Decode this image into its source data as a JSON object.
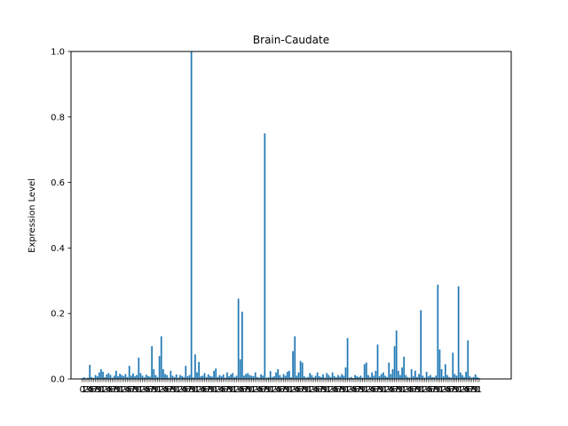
{
  "chart_data": {
    "type": "bar",
    "title": "Brain-Caudate",
    "xlabel": "",
    "ylabel": "Expression Level",
    "ylim": [
      0,
      1.0
    ],
    "yticks": [
      "0.0",
      "0.2",
      "0.4",
      "0.6",
      "0.8",
      "1.0"
    ],
    "xtick_labels_visible": [
      "0",
      "9"
    ],
    "xlim": [
      -6,
      228
    ],
    "bar_color": "#1f77b4",
    "grid": false,
    "legend": "none",
    "values": [
      0.003,
      0.005,
      0.002,
      0.004,
      0.043,
      0.006,
      0.003,
      0.012,
      0.008,
      0.02,
      0.03,
      0.022,
      0.005,
      0.014,
      0.018,
      0.012,
      0.004,
      0.01,
      0.025,
      0.008,
      0.016,
      0.012,
      0.009,
      0.015,
      0.006,
      0.04,
      0.01,
      0.017,
      0.008,
      0.012,
      0.065,
      0.018,
      0.01,
      0.005,
      0.013,
      0.009,
      0.007,
      0.1,
      0.03,
      0.012,
      0.006,
      0.07,
      0.13,
      0.03,
      0.015,
      0.012,
      0.004,
      0.025,
      0.01,
      0.006,
      0.014,
      0.004,
      0.012,
      0.009,
      0.006,
      0.04,
      0.008,
      0.012,
      1.0,
      0.005,
      0.075,
      0.02,
      0.052,
      0.008,
      0.01,
      0.018,
      0.006,
      0.014,
      0.009,
      0.007,
      0.025,
      0.032,
      0.006,
      0.012,
      0.008,
      0.014,
      0.004,
      0.02,
      0.008,
      0.014,
      0.018,
      0.006,
      0.01,
      0.245,
      0.06,
      0.205,
      0.01,
      0.015,
      0.018,
      0.012,
      0.01,
      0.008,
      0.02,
      0.006,
      0.004,
      0.014,
      0.01,
      0.75,
      0.004,
      0.005,
      0.024,
      0.006,
      0.008,
      0.02,
      0.03,
      0.012,
      0.005,
      0.015,
      0.01,
      0.022,
      0.025,
      0.005,
      0.085,
      0.13,
      0.01,
      0.02,
      0.055,
      0.05,
      0.008,
      0.004,
      0.006,
      0.018,
      0.012,
      0.005,
      0.01,
      0.02,
      0.008,
      0.006,
      0.014,
      0.004,
      0.018,
      0.012,
      0.006,
      0.02,
      0.009,
      0.005,
      0.012,
      0.007,
      0.015,
      0.01,
      0.035,
      0.125,
      0.004,
      0.006,
      0.003,
      0.012,
      0.008,
      0.006,
      0.01,
      0.004,
      0.045,
      0.05,
      0.012,
      0.006,
      0.02,
      0.01,
      0.025,
      0.105,
      0.008,
      0.015,
      0.02,
      0.01,
      0.006,
      0.05,
      0.015,
      0.03,
      0.1,
      0.148,
      0.025,
      0.012,
      0.035,
      0.068,
      0.012,
      0.006,
      0.004,
      0.03,
      0.008,
      0.025,
      0.006,
      0.015,
      0.21,
      0.01,
      0.004,
      0.022,
      0.008,
      0.012,
      0.006,
      0.005,
      0.01,
      0.288,
      0.09,
      0.03,
      0.008,
      0.045,
      0.012,
      0.006,
      0.004,
      0.08,
      0.015,
      0.01,
      0.283,
      0.02,
      0.012,
      0.006,
      0.022,
      0.118,
      0.008,
      0.004,
      0.006,
      0.014,
      0.006,
      0.003
    ]
  }
}
